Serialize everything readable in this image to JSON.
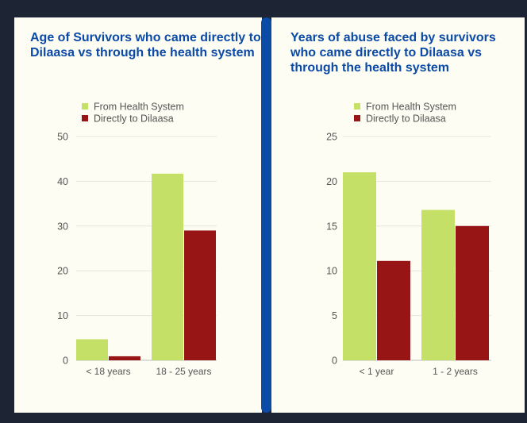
{
  "chart_data": [
    {
      "type": "bar",
      "title": "Age of Survivors who came directly to Dilaasa vs through the health system",
      "categories": [
        "< 18 years",
        "18 - 25 years"
      ],
      "series": [
        {
          "name": "From Health System",
          "values": [
            4.7,
            41.7
          ],
          "color": "#c5e067"
        },
        {
          "name": "Directly to Dilaasa",
          "values": [
            0.9,
            29.0
          ],
          "color": "#981515"
        }
      ],
      "ylim": [
        0,
        50
      ],
      "yticks": [
        0,
        10,
        20,
        30,
        40,
        50
      ],
      "grid": true,
      "legend": "top-left"
    },
    {
      "type": "bar",
      "title": "Years of abuse faced by survivors who came directly to Dilaasa vs through the health system",
      "categories": [
        "< 1 year",
        "1 - 2 years"
      ],
      "series": [
        {
          "name": "From Health System",
          "values": [
            21.0,
            16.8
          ],
          "color": "#c5e067"
        },
        {
          "name": "Directly to Dilaasa",
          "values": [
            11.1,
            15.0
          ],
          "color": "#981515"
        }
      ],
      "ylim": [
        0,
        25
      ],
      "yticks": [
        0,
        5,
        10,
        15,
        20,
        25
      ],
      "grid": true,
      "legend": "top-left"
    }
  ]
}
